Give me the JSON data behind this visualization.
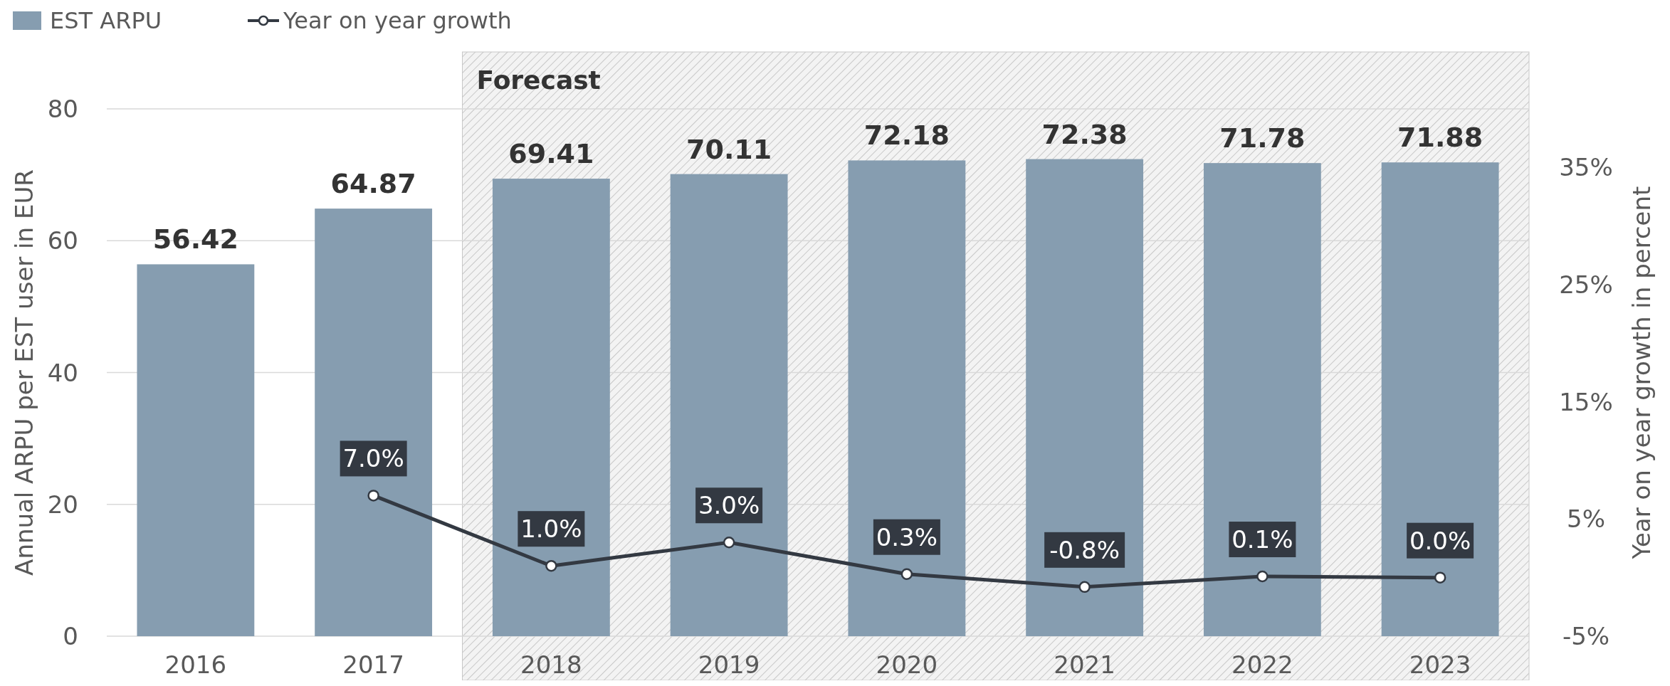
{
  "chart_data": {
    "type": "bar",
    "categories": [
      "2016",
      "2017",
      "2018",
      "2019",
      "2020",
      "2021",
      "2022",
      "2023"
    ],
    "series": [
      {
        "name": "EST ARPU",
        "color": "#869db0",
        "values": [
          56.42,
          64.87,
          69.41,
          70.11,
          72.18,
          72.38,
          71.78,
          71.88
        ]
      },
      {
        "name": "Year on year growth",
        "type": "line",
        "axis": "y2",
        "color": "#333942",
        "values": [
          null,
          7.0,
          1.0,
          3.0,
          0.3,
          -0.8,
          0.1,
          0.0
        ],
        "value_labels": [
          null,
          "7.0%",
          "1.0%",
          "3.0%",
          "0.3%",
          "-0.8%",
          "0.1%",
          "0.0%"
        ]
      }
    ],
    "data_labels": true,
    "ylabel": "Annual ARPU per EST user in EUR",
    "y2label": "Year on year growth in percent",
    "ylim": [
      0,
      80
    ],
    "yticks": [
      0,
      20,
      40,
      60,
      80
    ],
    "y2lim": [
      -5,
      40
    ],
    "y2ticks": [
      {
        "value": -5,
        "label": "-5%"
      },
      {
        "value": 5,
        "label": "5%"
      },
      {
        "value": 15,
        "label": "15%"
      },
      {
        "value": 25,
        "label": "25%"
      },
      {
        "value": 35,
        "label": "35%"
      }
    ],
    "bands": [
      {
        "axis": "x",
        "from": "2018",
        "to": "2023",
        "label": "Forecast",
        "color": "#c8c8c8"
      }
    ],
    "grid": "y",
    "legend": "top left",
    "marker": "circle",
    "line_style": "solid"
  }
}
